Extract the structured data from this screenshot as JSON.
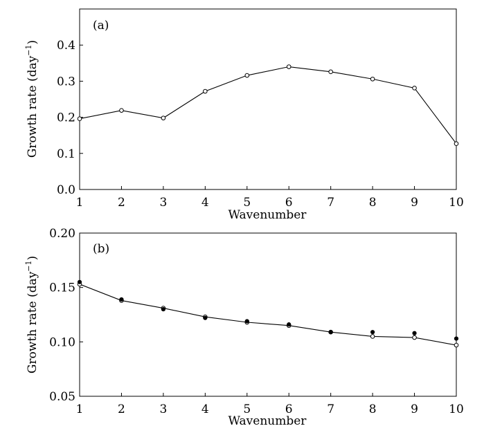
{
  "chart_data": [
    {
      "type": "line",
      "panel_label": "(a)",
      "xlabel": "Wavenumber",
      "ylabel": "Growth rate (day",
      "ylabel_exponent": "−1",
      "ylabel_close": ")",
      "x": [
        1,
        2,
        3,
        4,
        5,
        6,
        7,
        8,
        9,
        10
      ],
      "xlim": [
        1,
        10
      ],
      "ylim": [
        0,
        0.5
      ],
      "xticks": [
        "1",
        "2",
        "3",
        "4",
        "5",
        "6",
        "7",
        "8",
        "9",
        "10"
      ],
      "yticks": [
        {
          "value": 0.0,
          "label": "0.0"
        },
        {
          "value": 0.1,
          "label": "0.1"
        },
        {
          "value": 0.2,
          "label": "0.2"
        },
        {
          "value": 0.3,
          "label": "0.3"
        },
        {
          "value": 0.4,
          "label": "0.4"
        }
      ],
      "grid": false,
      "reference_line": 0.0,
      "series": [
        {
          "name": "growth rate",
          "marker": "open-circle",
          "line": true,
          "values": [
            0.196,
            0.219,
            0.198,
            0.272,
            0.316,
            0.34,
            0.326,
            0.306,
            0.281,
            0.127
          ]
        }
      ]
    },
    {
      "type": "line",
      "panel_label": "(b)",
      "xlabel": "Wavenumber",
      "ylabel": "Growth rate (day",
      "ylabel_exponent": "−1",
      "ylabel_close": ")",
      "x": [
        1,
        2,
        3,
        4,
        5,
        6,
        7,
        8,
        9,
        10
      ],
      "xlim": [
        1,
        10
      ],
      "ylim": [
        0.05,
        0.2
      ],
      "xticks": [
        "1",
        "2",
        "3",
        "4",
        "5",
        "6",
        "7",
        "8",
        "9",
        "10"
      ],
      "yticks": [
        {
          "value": 0.05,
          "label": "0.05"
        },
        {
          "value": 0.1,
          "label": "0.10"
        },
        {
          "value": 0.15,
          "label": "0.15"
        },
        {
          "value": 0.2,
          "label": "0.20"
        }
      ],
      "grid": false,
      "series": [
        {
          "name": "open circles",
          "marker": "open-circle",
          "line": true,
          "values": [
            0.153,
            0.138,
            0.131,
            0.123,
            0.118,
            0.115,
            0.109,
            0.105,
            0.104,
            0.097
          ]
        },
        {
          "name": "filled dots",
          "marker": "filled-circle",
          "line": false,
          "values": [
            0.155,
            0.139,
            0.13,
            0.122,
            0.119,
            0.116,
            0.109,
            0.109,
            0.108,
            0.103
          ]
        }
      ]
    }
  ]
}
